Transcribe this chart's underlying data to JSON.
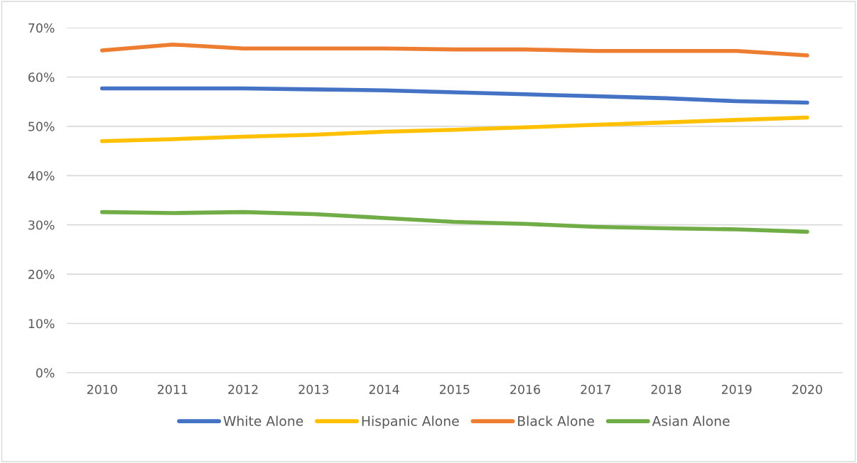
{
  "chart_data": {
    "type": "line",
    "categories": [
      "2010",
      "2011",
      "2012",
      "2013",
      "2014",
      "2015",
      "2016",
      "2017",
      "2018",
      "2019",
      "2020"
    ],
    "series": [
      {
        "name": "White Alone",
        "color": "#4472c4",
        "values": [
          57.7,
          57.7,
          57.7,
          57.5,
          57.3,
          56.9,
          56.5,
          56.1,
          55.7,
          55.1,
          54.8
        ]
      },
      {
        "name": "Hispanic Alone",
        "color": "#ffc000",
        "values": [
          47.0,
          47.4,
          47.9,
          48.3,
          48.9,
          49.3,
          49.8,
          50.3,
          50.8,
          51.3,
          51.8
        ]
      },
      {
        "name": "Black Alone",
        "color": "#ed7d31",
        "values": [
          65.4,
          66.6,
          65.8,
          65.8,
          65.8,
          65.6,
          65.6,
          65.3,
          65.3,
          65.3,
          64.4
        ]
      },
      {
        "name": "Asian Alone",
        "color": "#70ad47",
        "values": [
          32.6,
          32.4,
          32.6,
          32.2,
          31.4,
          30.6,
          30.2,
          29.6,
          29.3,
          29.1,
          28.6
        ]
      }
    ],
    "ylim": [
      0,
      70
    ],
    "yticks": [
      {
        "value": 0,
        "label": "0%"
      },
      {
        "value": 10,
        "label": "10%"
      },
      {
        "value": 20,
        "label": "20%"
      },
      {
        "value": 30,
        "label": "30%"
      },
      {
        "value": 40,
        "label": "40%"
      },
      {
        "value": 50,
        "label": "50%"
      },
      {
        "value": 60,
        "label": "60%"
      },
      {
        "value": 70,
        "label": "70%"
      }
    ],
    "grid": "y",
    "legend": "bottom",
    "marker": "none",
    "line_style": "solid"
  }
}
